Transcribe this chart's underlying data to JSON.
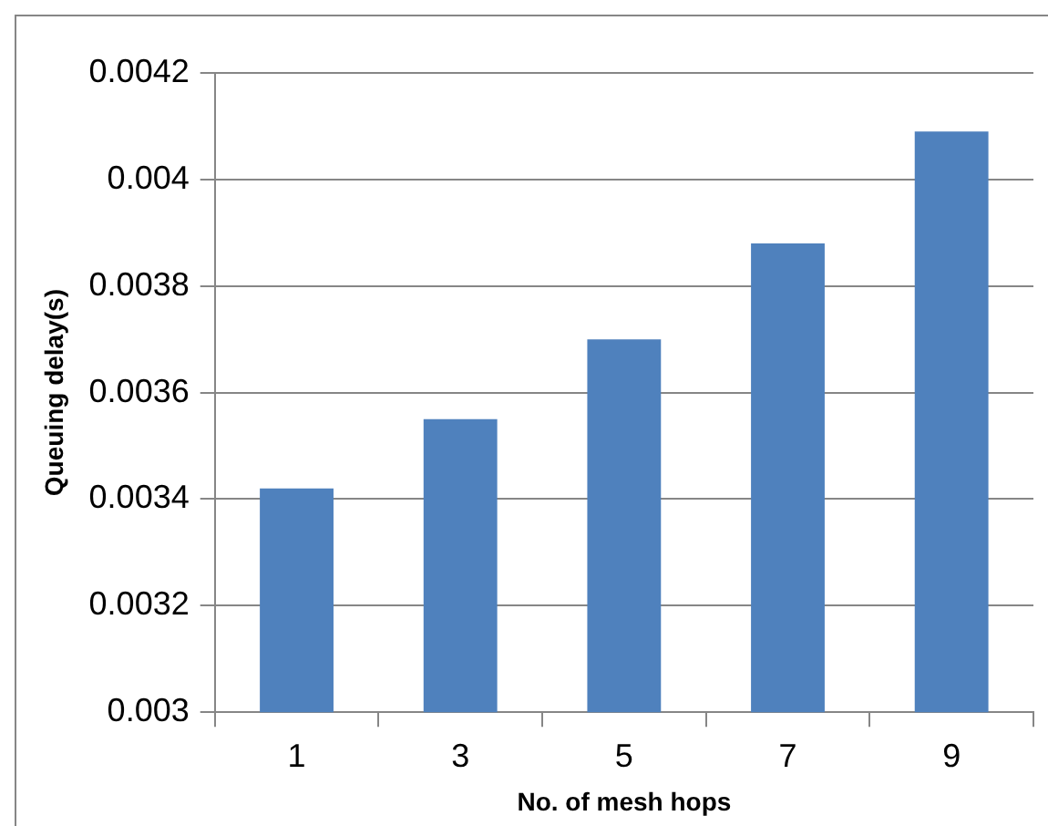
{
  "chart_data": {
    "type": "bar",
    "xlabel": "No. of mesh hops",
    "ylabel": "Queuing delay(s)",
    "categories": [
      "1",
      "3",
      "5",
      "7",
      "9"
    ],
    "values": [
      0.00342,
      0.00355,
      0.0037,
      0.00388,
      0.00409
    ],
    "color": "#4f81bd",
    "ylim": [
      0.003,
      0.0042
    ],
    "yticks": [
      0.003,
      0.0032,
      0.0034,
      0.0036,
      0.0038,
      0.004,
      0.0042
    ],
    "grid": "y",
    "legend": false
  }
}
